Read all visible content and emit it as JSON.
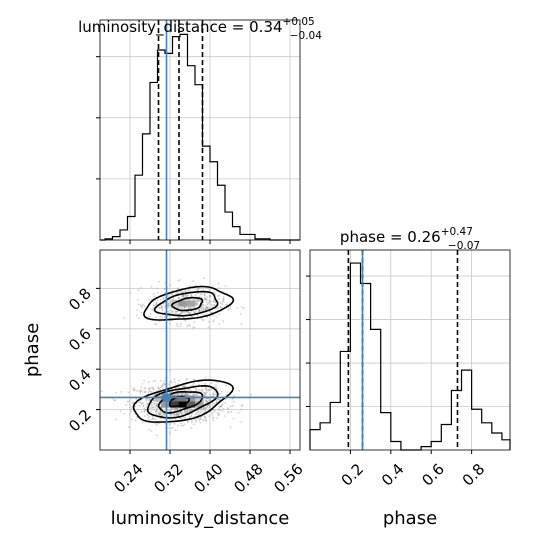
{
  "chart_data": [
    {
      "panel": "luminosity_distance-marginal",
      "type": "histogram",
      "title": {
        "param": "luminosity_distance",
        "value": "0.34",
        "plus": "+0.05",
        "minus": "−0.04"
      },
      "xlim": [
        0.18,
        0.58
      ],
      "bin_edges": [
        0.19,
        0.205,
        0.22,
        0.235,
        0.25,
        0.265,
        0.28,
        0.295,
        0.31,
        0.325,
        0.34,
        0.355,
        0.37,
        0.385,
        0.4,
        0.415,
        0.43,
        0.445,
        0.46,
        0.475,
        0.49,
        0.505,
        0.52,
        0.535
      ],
      "counts": [
        1,
        3,
        9,
        21,
        58,
        95,
        141,
        170,
        167,
        182,
        184,
        156,
        139,
        84,
        70,
        49,
        25,
        12,
        5,
        5,
        1,
        1,
        0
      ],
      "quantiles": [
        0.297,
        0.338,
        0.385
      ],
      "truth": 0.313,
      "grid": true
    },
    {
      "panel": "phase-marginal",
      "type": "histogram",
      "title": {
        "param": "phase",
        "value": "0.26",
        "plus": "+0.47",
        "minus": "−0.07"
      },
      "xlim": [
        0.0,
        0.99
      ],
      "bin_edges": [
        0.0,
        0.05,
        0.1,
        0.15,
        0.2,
        0.25,
        0.3,
        0.35,
        0.4,
        0.45,
        0.5,
        0.55,
        0.6,
        0.65,
        0.7,
        0.75,
        0.8,
        0.85,
        0.9,
        0.95,
        0.99
      ],
      "counts": [
        12,
        16,
        28,
        58,
        110,
        98,
        71,
        22,
        5,
        0,
        0,
        2,
        5,
        15,
        35,
        47,
        24,
        16,
        10,
        6
      ],
      "quantiles": [
        0.19,
        0.26,
        0.73
      ],
      "truth": 0.26,
      "grid": true
    },
    {
      "panel": "joint",
      "type": "scatter-contour",
      "xlabel": "luminosity_distance",
      "ylabel": "phase",
      "xlim": [
        0.18,
        0.58
      ],
      "ylim": [
        0.0,
        0.99
      ],
      "xticks": [
        "0.24",
        "0.32",
        "0.40",
        "0.48",
        "0.56"
      ],
      "yticks": [
        "0.2",
        "0.4",
        "0.6",
        "0.8"
      ],
      "phase_ticks": [
        "0.2",
        "0.4",
        "0.6",
        "0.8"
      ],
      "truth": {
        "luminosity_distance": 0.313,
        "phase": 0.26
      },
      "clusters": [
        {
          "center": [
            0.34,
            0.235
          ],
          "spread": [
            0.045,
            0.048
          ],
          "weight": 0.68
        },
        {
          "center": [
            0.355,
            0.72
          ],
          "spread": [
            0.038,
            0.045
          ],
          "weight": 0.32
        }
      ],
      "contours": [
        {
          "center": [
            0.338,
            0.24
          ],
          "radii": [
            0.02,
            0.022
          ],
          "tilt": -0.25
        },
        {
          "center": [
            0.34,
            0.24
          ],
          "radii": [
            0.045,
            0.045
          ],
          "tilt": -0.25
        },
        {
          "center": [
            0.343,
            0.24
          ],
          "radii": [
            0.072,
            0.066
          ],
          "tilt": -0.25
        },
        {
          "center": [
            0.345,
            0.24
          ],
          "radii": [
            0.1,
            0.087
          ],
          "tilt": -0.25
        },
        {
          "center": [
            0.356,
            0.722
          ],
          "radii": [
            0.03,
            0.03
          ],
          "tilt": -0.15
        },
        {
          "center": [
            0.356,
            0.722
          ],
          "radii": [
            0.062,
            0.055
          ],
          "tilt": -0.15
        },
        {
          "center": [
            0.356,
            0.722
          ],
          "radii": [
            0.088,
            0.075
          ],
          "tilt": -0.15
        }
      ],
      "density_cells": [
        {
          "x": 0.345,
          "y": 0.225,
          "level": 1.0
        },
        {
          "x": 0.328,
          "y": 0.225,
          "level": 0.75
        },
        {
          "x": 0.362,
          "y": 0.225,
          "level": 0.6
        },
        {
          "x": 0.328,
          "y": 0.255,
          "level": 0.55
        },
        {
          "x": 0.311,
          "y": 0.255,
          "level": 0.45
        },
        {
          "x": 0.345,
          "y": 0.255,
          "level": 0.5
        },
        {
          "x": 0.362,
          "y": 0.255,
          "level": 0.35
        },
        {
          "x": 0.379,
          "y": 0.225,
          "level": 0.3
        },
        {
          "x": 0.311,
          "y": 0.225,
          "level": 0.35
        },
        {
          "x": 0.294,
          "y": 0.255,
          "level": 0.2
        },
        {
          "x": 0.379,
          "y": 0.255,
          "level": 0.15
        },
        {
          "x": 0.345,
          "y": 0.725,
          "level": 0.35
        },
        {
          "x": 0.362,
          "y": 0.725,
          "level": 0.3
        },
        {
          "x": 0.328,
          "y": 0.725,
          "level": 0.15
        }
      ]
    }
  ]
}
